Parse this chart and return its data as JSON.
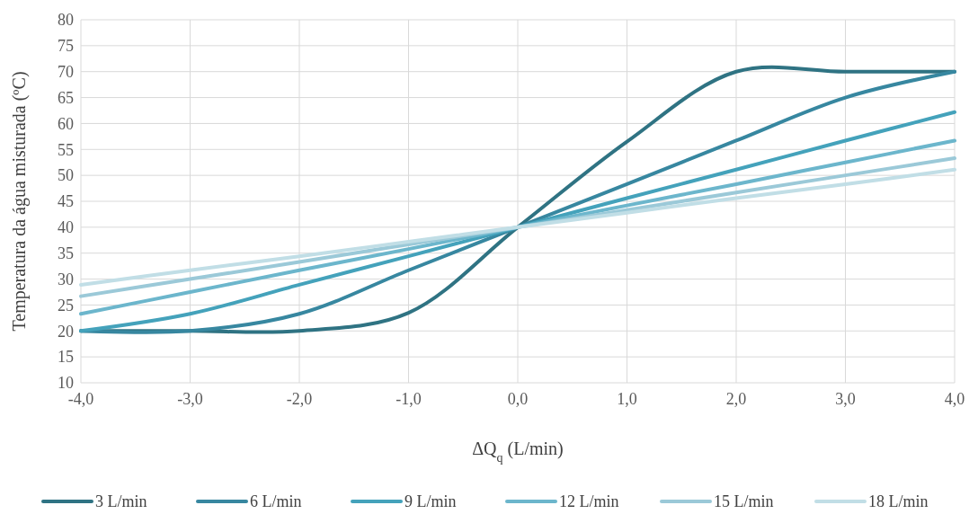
{
  "chart_data": {
    "type": "line",
    "xlabel": "ΔQ$_{q}$ (L/min)",
    "ylabel": "Temperatura da água misturada (ºC)",
    "x": [
      -4,
      -3,
      -2,
      -1,
      0,
      1,
      2,
      3,
      4
    ],
    "xlim": [
      -4,
      4
    ],
    "xticks": [
      {
        "value": -4,
        "label": "-4,0"
      },
      {
        "value": -3,
        "label": "-3,0"
      },
      {
        "value": -2,
        "label": "-2,0"
      },
      {
        "value": -1,
        "label": "-1,0"
      },
      {
        "value": 0,
        "label": "0,0"
      },
      {
        "value": 1,
        "label": "1,0"
      },
      {
        "value": 2,
        "label": "2,0"
      },
      {
        "value": 3,
        "label": "3,0"
      },
      {
        "value": 4,
        "label": "4,0"
      }
    ],
    "ylim": [
      10,
      80
    ],
    "yticks": [
      10,
      15,
      20,
      25,
      30,
      35,
      40,
      45,
      50,
      55,
      60,
      65,
      70,
      75,
      80
    ],
    "grid": true,
    "legend": "bottom",
    "marker": "none",
    "line_style": "solid",
    "series": [
      {
        "name": "3 L/min",
        "color": "#2f7383",
        "values": [
          20,
          20,
          20,
          23.5,
          40,
          56.5,
          70,
          70,
          70
        ]
      },
      {
        "name": "6 L/min",
        "color": "#3787a0",
        "values": [
          20,
          20,
          23.3,
          31.7,
          40,
          48.3,
          56.7,
          65,
          70
        ]
      },
      {
        "name": "9 L/min",
        "color": "#44a2bb",
        "values": [
          20,
          23.3,
          28.9,
          34.4,
          40,
          45.6,
          51.1,
          56.7,
          62.2
        ]
      },
      {
        "name": "12 L/min",
        "color": "#6cb6cc",
        "values": [
          23.3,
          27.5,
          31.7,
          35.8,
          40,
          44.2,
          48.3,
          52.5,
          56.7
        ]
      },
      {
        "name": "15 L/min",
        "color": "#9bc9d8",
        "values": [
          26.7,
          30,
          33.3,
          36.7,
          40,
          43.3,
          46.7,
          50,
          53.3
        ]
      },
      {
        "name": "18 L/min",
        "color": "#c1dee6",
        "values": [
          28.9,
          31.7,
          34.4,
          37.2,
          40,
          42.8,
          45.6,
          48.3,
          51.1
        ]
      }
    ]
  }
}
